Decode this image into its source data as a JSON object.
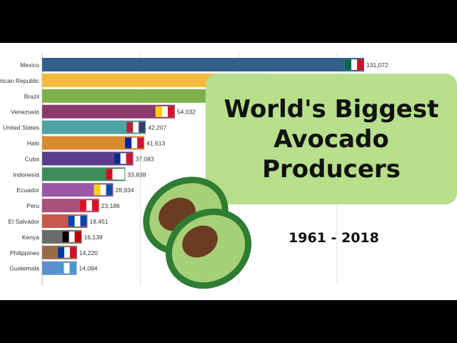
{
  "title": {
    "lines": [
      "World's Biggest",
      "Avocado",
      "Producers"
    ],
    "years": "1961 - 2018"
  },
  "colors": {
    "title_box": "#b7df8c",
    "avocado_skin": "#2f7d32",
    "avocado_flesh": "#a6d178",
    "avocado_pit": "#6b3b22"
  },
  "chart_data": {
    "type": "bar",
    "orientation": "horizontal",
    "title": "",
    "xlabel": "",
    "ylabel": "",
    "xlim": [
      0,
      140000
    ],
    "grid": true,
    "categories": [
      "Mexico",
      "Dominican Republic",
      "Brazil",
      "Venezuela",
      "United States",
      "Haiti",
      "Cuba",
      "Indonesia",
      "Ecuador",
      "Peru",
      "El Salvador",
      "Kenya",
      "Philippines",
      "Guatemala"
    ],
    "values": [
      131072,
      91000,
      84000,
      54032,
      42207,
      41613,
      37083,
      33838,
      28934,
      23186,
      18451,
      16139,
      14220,
      14084
    ],
    "value_labels": [
      "131,072",
      "",
      "",
      "54,032",
      "42,207",
      "41,613",
      "37,083",
      "33,838",
      "28,934",
      "23,186",
      "18,451",
      "16,139",
      "14,220",
      "14,084"
    ],
    "bar_colors": [
      "#2f5f8a",
      "#f2bb3c",
      "#7fb14b",
      "#8b3a6e",
      "#4fa3a5",
      "#d98a2e",
      "#5a3d8c",
      "#3d8c5a",
      "#9a56a8",
      "#a84f7a",
      "#c9584a",
      "#6b6b6b",
      "#9a6b4a",
      "#5b8fd1"
    ],
    "flags": [
      "mexico-flag",
      "dominican-republic-flag",
      "brazil-flag",
      "venezuela-flag",
      "united-states-flag",
      "haiti-flag",
      "cuba-flag",
      "indonesia-flag",
      "ecuador-flag",
      "peru-flag",
      "el-salvador-flag",
      "kenya-flag",
      "philippines-flag",
      "guatemala-flag"
    ]
  }
}
